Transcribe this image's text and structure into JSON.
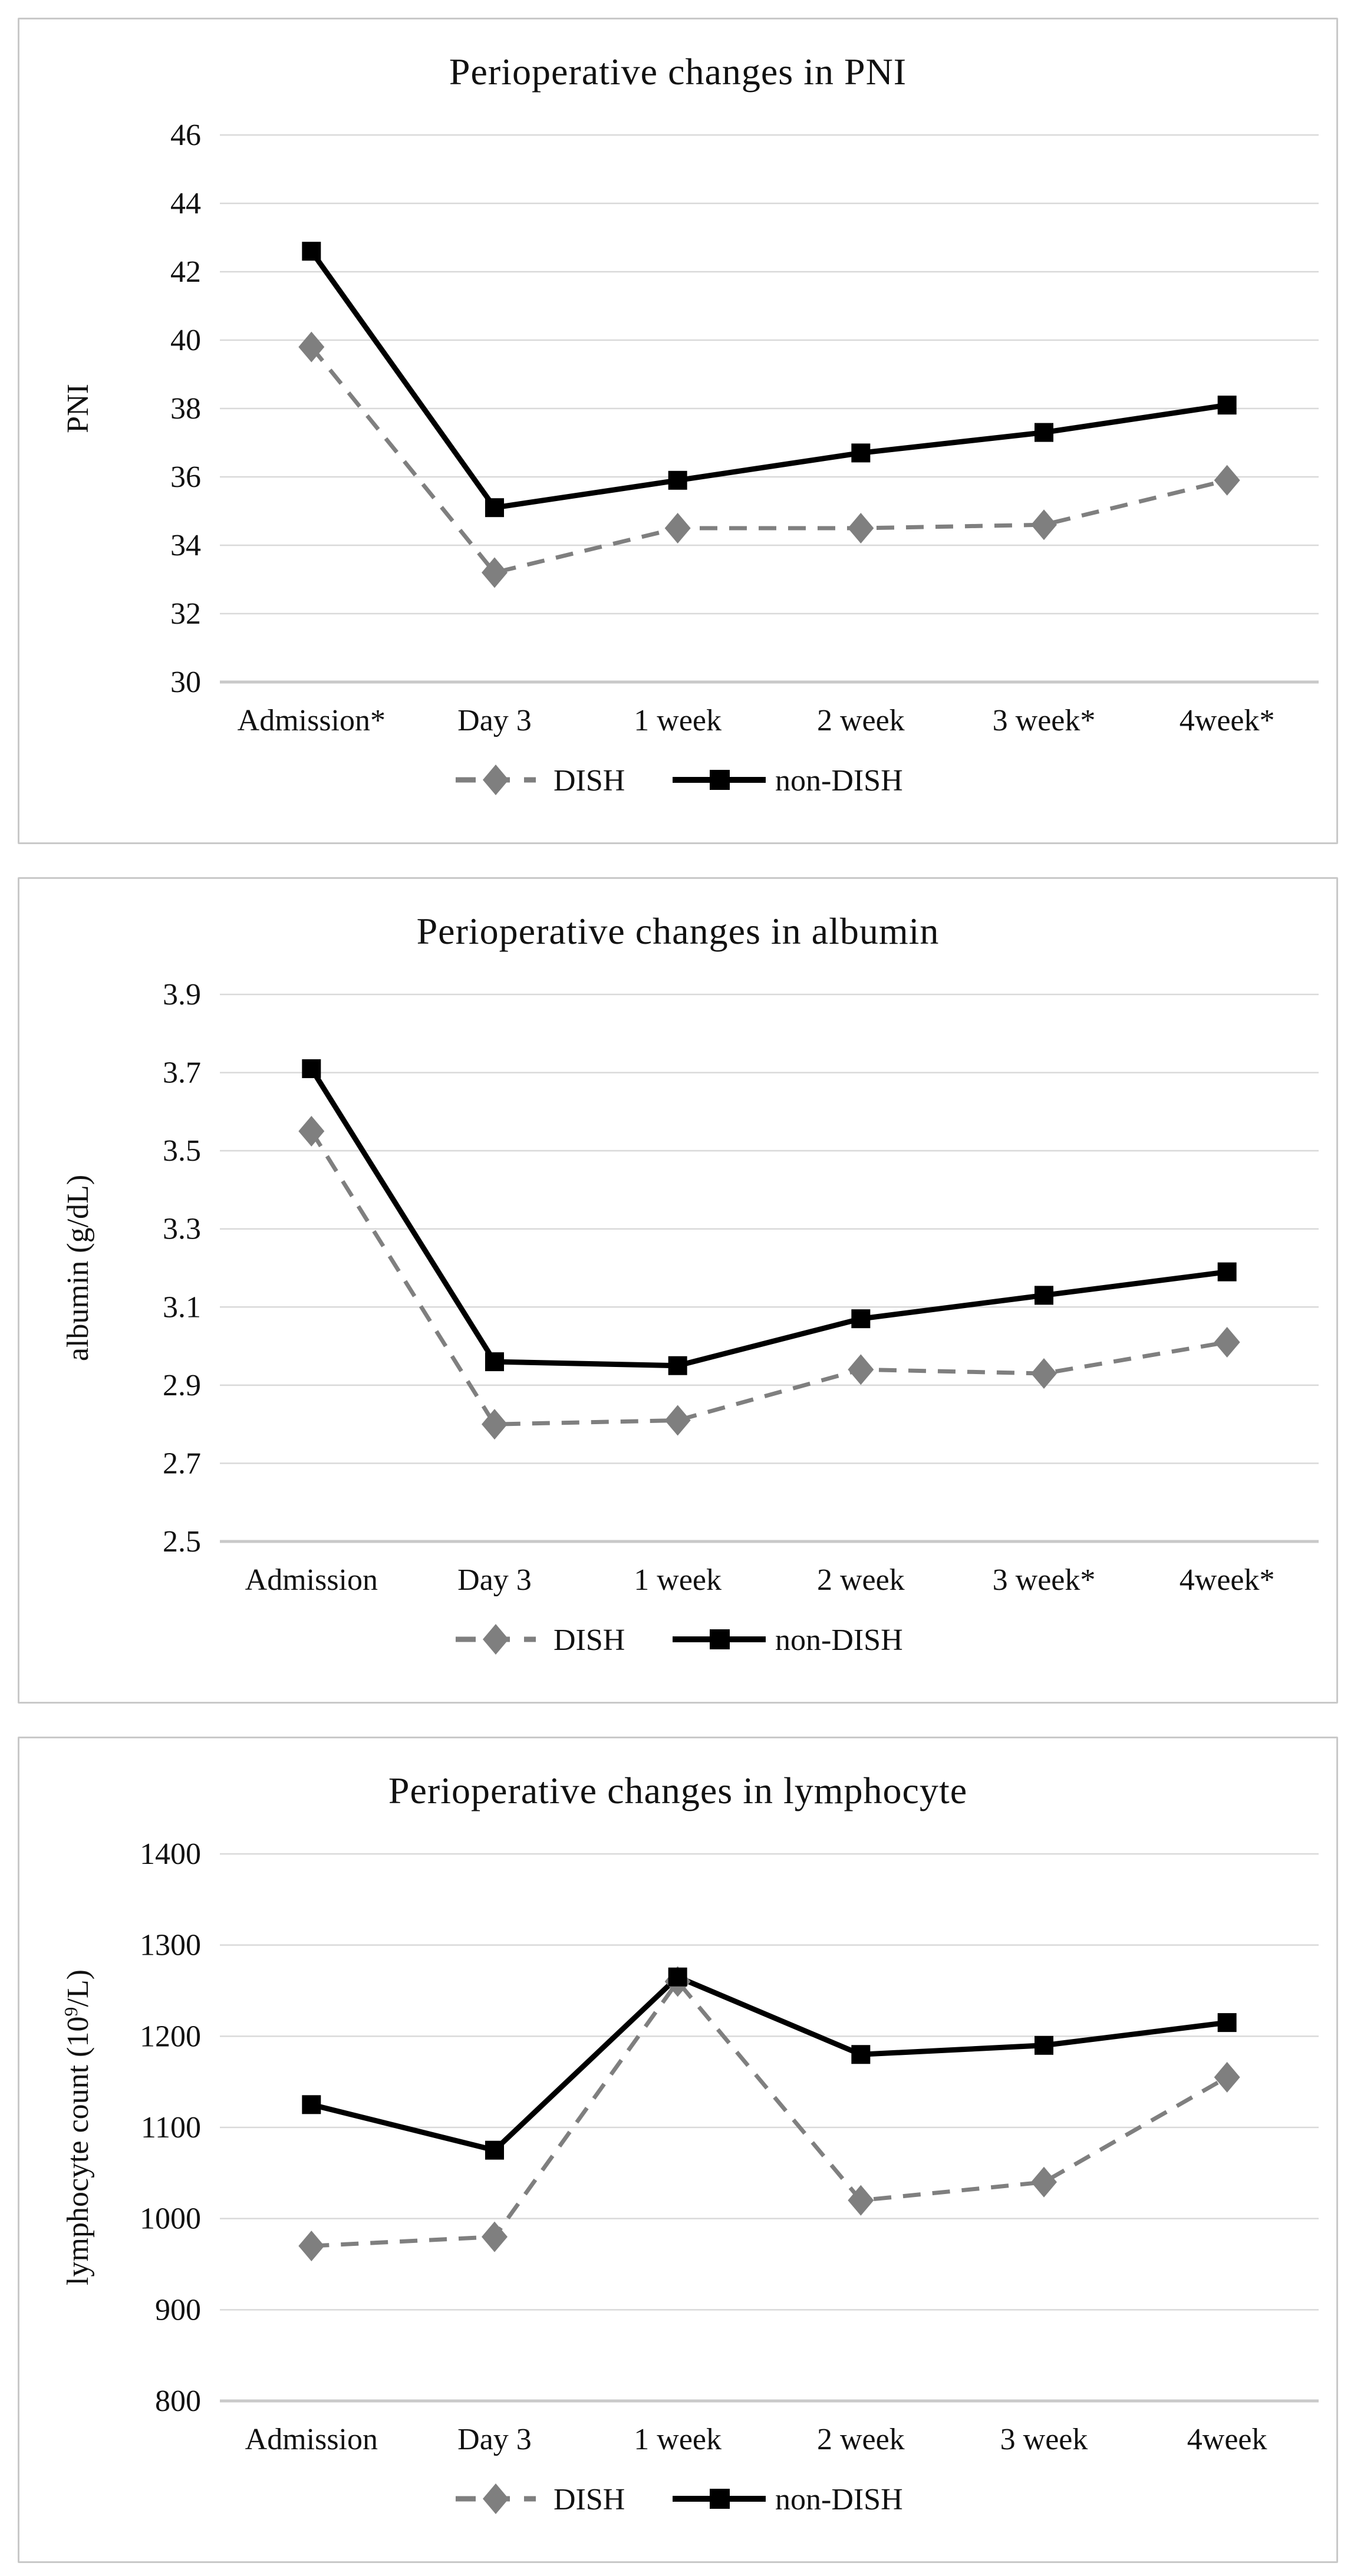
{
  "colors": {
    "dish_series": "#7f7f7f",
    "non_dish_series": "#000000",
    "gridline": "#d9d9d9",
    "axis_line": "#c9c9c9",
    "panel_border": "#c9c9c9",
    "text": "#111111"
  },
  "legend": {
    "dish_label": "DISH",
    "non_dish_label": "non-DISH"
  },
  "chart_data": [
    {
      "type": "line",
      "title": "Perioperative changes in PNI",
      "xlabel": "",
      "ylabel": "PNI",
      "categories": [
        "Admission*",
        "Day 3",
        "1 week",
        "2 week",
        "3 week*",
        "4week*"
      ],
      "yticks": [
        "30",
        "32",
        "34",
        "36",
        "38",
        "40",
        "42",
        "44",
        "46"
      ],
      "ylim": [
        30,
        46
      ],
      "grid": true,
      "legend_position": "bottom",
      "series": [
        {
          "name": "DISH",
          "style": "dashed",
          "marker": "diamond",
          "color": "#7f7f7f",
          "values": [
            39.8,
            33.2,
            34.5,
            34.5,
            34.6,
            35.9
          ]
        },
        {
          "name": "non-DISH",
          "style": "solid",
          "marker": "square",
          "color": "#000000",
          "values": [
            42.6,
            35.1,
            35.9,
            36.7,
            37.3,
            38.1
          ]
        }
      ]
    },
    {
      "type": "line",
      "title": "Perioperative changes in albumin",
      "xlabel": "",
      "ylabel": "albumin (g/dL)",
      "categories": [
        "Admission",
        "Day 3",
        "1 week",
        "2 week",
        "3 week*",
        "4week*"
      ],
      "yticks": [
        "2.5",
        "2.7",
        "2.9",
        "3.1",
        "3.3",
        "3.5",
        "3.7",
        "3.9"
      ],
      "ylim": [
        2.5,
        3.9
      ],
      "grid": true,
      "legend_position": "bottom",
      "series": [
        {
          "name": "DISH",
          "style": "dashed",
          "marker": "diamond",
          "color": "#7f7f7f",
          "values": [
            3.55,
            2.8,
            2.81,
            2.94,
            2.93,
            3.01
          ]
        },
        {
          "name": "non-DISH",
          "style": "solid",
          "marker": "square",
          "color": "#000000",
          "values": [
            3.71,
            2.96,
            2.95,
            3.07,
            3.13,
            3.19
          ]
        }
      ]
    },
    {
      "type": "line",
      "title": "Perioperative changes in lymphocyte",
      "xlabel": "",
      "ylabel": "lymphocyte count (10⁹/L)",
      "categories": [
        "Admission",
        "Day 3",
        "1 week",
        "2 week",
        "3 week",
        "4week"
      ],
      "yticks": [
        "800",
        "900",
        "1000",
        "1100",
        "1200",
        "1300",
        "1400"
      ],
      "ylim": [
        800,
        1400
      ],
      "grid": true,
      "legend_position": "bottom",
      "series": [
        {
          "name": "DISH",
          "style": "dashed",
          "marker": "diamond",
          "color": "#7f7f7f",
          "values": [
            970,
            980,
            1260,
            1020,
            1040,
            1155
          ]
        },
        {
          "name": "non-DISH",
          "style": "solid",
          "marker": "square",
          "color": "#000000",
          "values": [
            1125,
            1075,
            1265,
            1180,
            1190,
            1215
          ]
        }
      ]
    }
  ]
}
